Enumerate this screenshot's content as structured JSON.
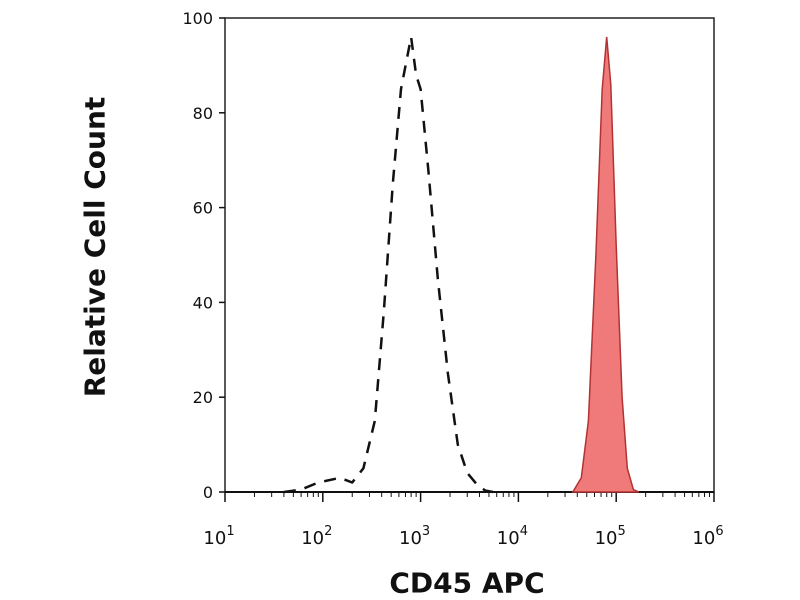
{
  "chart_data": {
    "type": "area",
    "xlabel": "CD45 APC",
    "ylabel": "Relative Cell Count",
    "x_scale": "log",
    "xlim": [
      10,
      1000000
    ],
    "ylim": [
      0,
      100
    ],
    "x_ticks": [
      {
        "base": "10",
        "exp": "1",
        "value": 10
      },
      {
        "base": "10",
        "exp": "2",
        "value": 100
      },
      {
        "base": "10",
        "exp": "3",
        "value": 1000
      },
      {
        "base": "10",
        "exp": "4",
        "value": 10000
      },
      {
        "base": "10",
        "exp": "5",
        "value": 100000
      },
      {
        "base": "10",
        "exp": "6",
        "value": 1000000
      }
    ],
    "y_ticks": [
      "0",
      "20",
      "40",
      "60",
      "80",
      "100"
    ],
    "grid": false,
    "series": [
      {
        "style": "dashed-outline",
        "color": "#111111",
        "points": [
          [
            40,
            0
          ],
          [
            60,
            0.5
          ],
          [
            90,
            2
          ],
          [
            150,
            3
          ],
          [
            200,
            2
          ],
          [
            260,
            5
          ],
          [
            340,
            15
          ],
          [
            420,
            38
          ],
          [
            520,
            65
          ],
          [
            630,
            85
          ],
          [
            800,
            96
          ],
          [
            900,
            88
          ],
          [
            1000,
            85
          ],
          [
            1200,
            68
          ],
          [
            1500,
            45
          ],
          [
            1900,
            25
          ],
          [
            2400,
            10
          ],
          [
            3000,
            4
          ],
          [
            3800,
            1.5
          ],
          [
            4600,
            0.3
          ],
          [
            5500,
            0
          ]
        ]
      },
      {
        "style": "filled",
        "color": "#f07a7a",
        "stroke": "#b23333",
        "points": [
          [
            36000,
            0
          ],
          [
            44000,
            3
          ],
          [
            52000,
            15
          ],
          [
            62000,
            50
          ],
          [
            72000,
            85
          ],
          [
            80000,
            96
          ],
          [
            88000,
            86
          ],
          [
            100000,
            52
          ],
          [
            115000,
            20
          ],
          [
            130000,
            5
          ],
          [
            150000,
            0.5
          ],
          [
            170000,
            0
          ]
        ]
      }
    ]
  }
}
